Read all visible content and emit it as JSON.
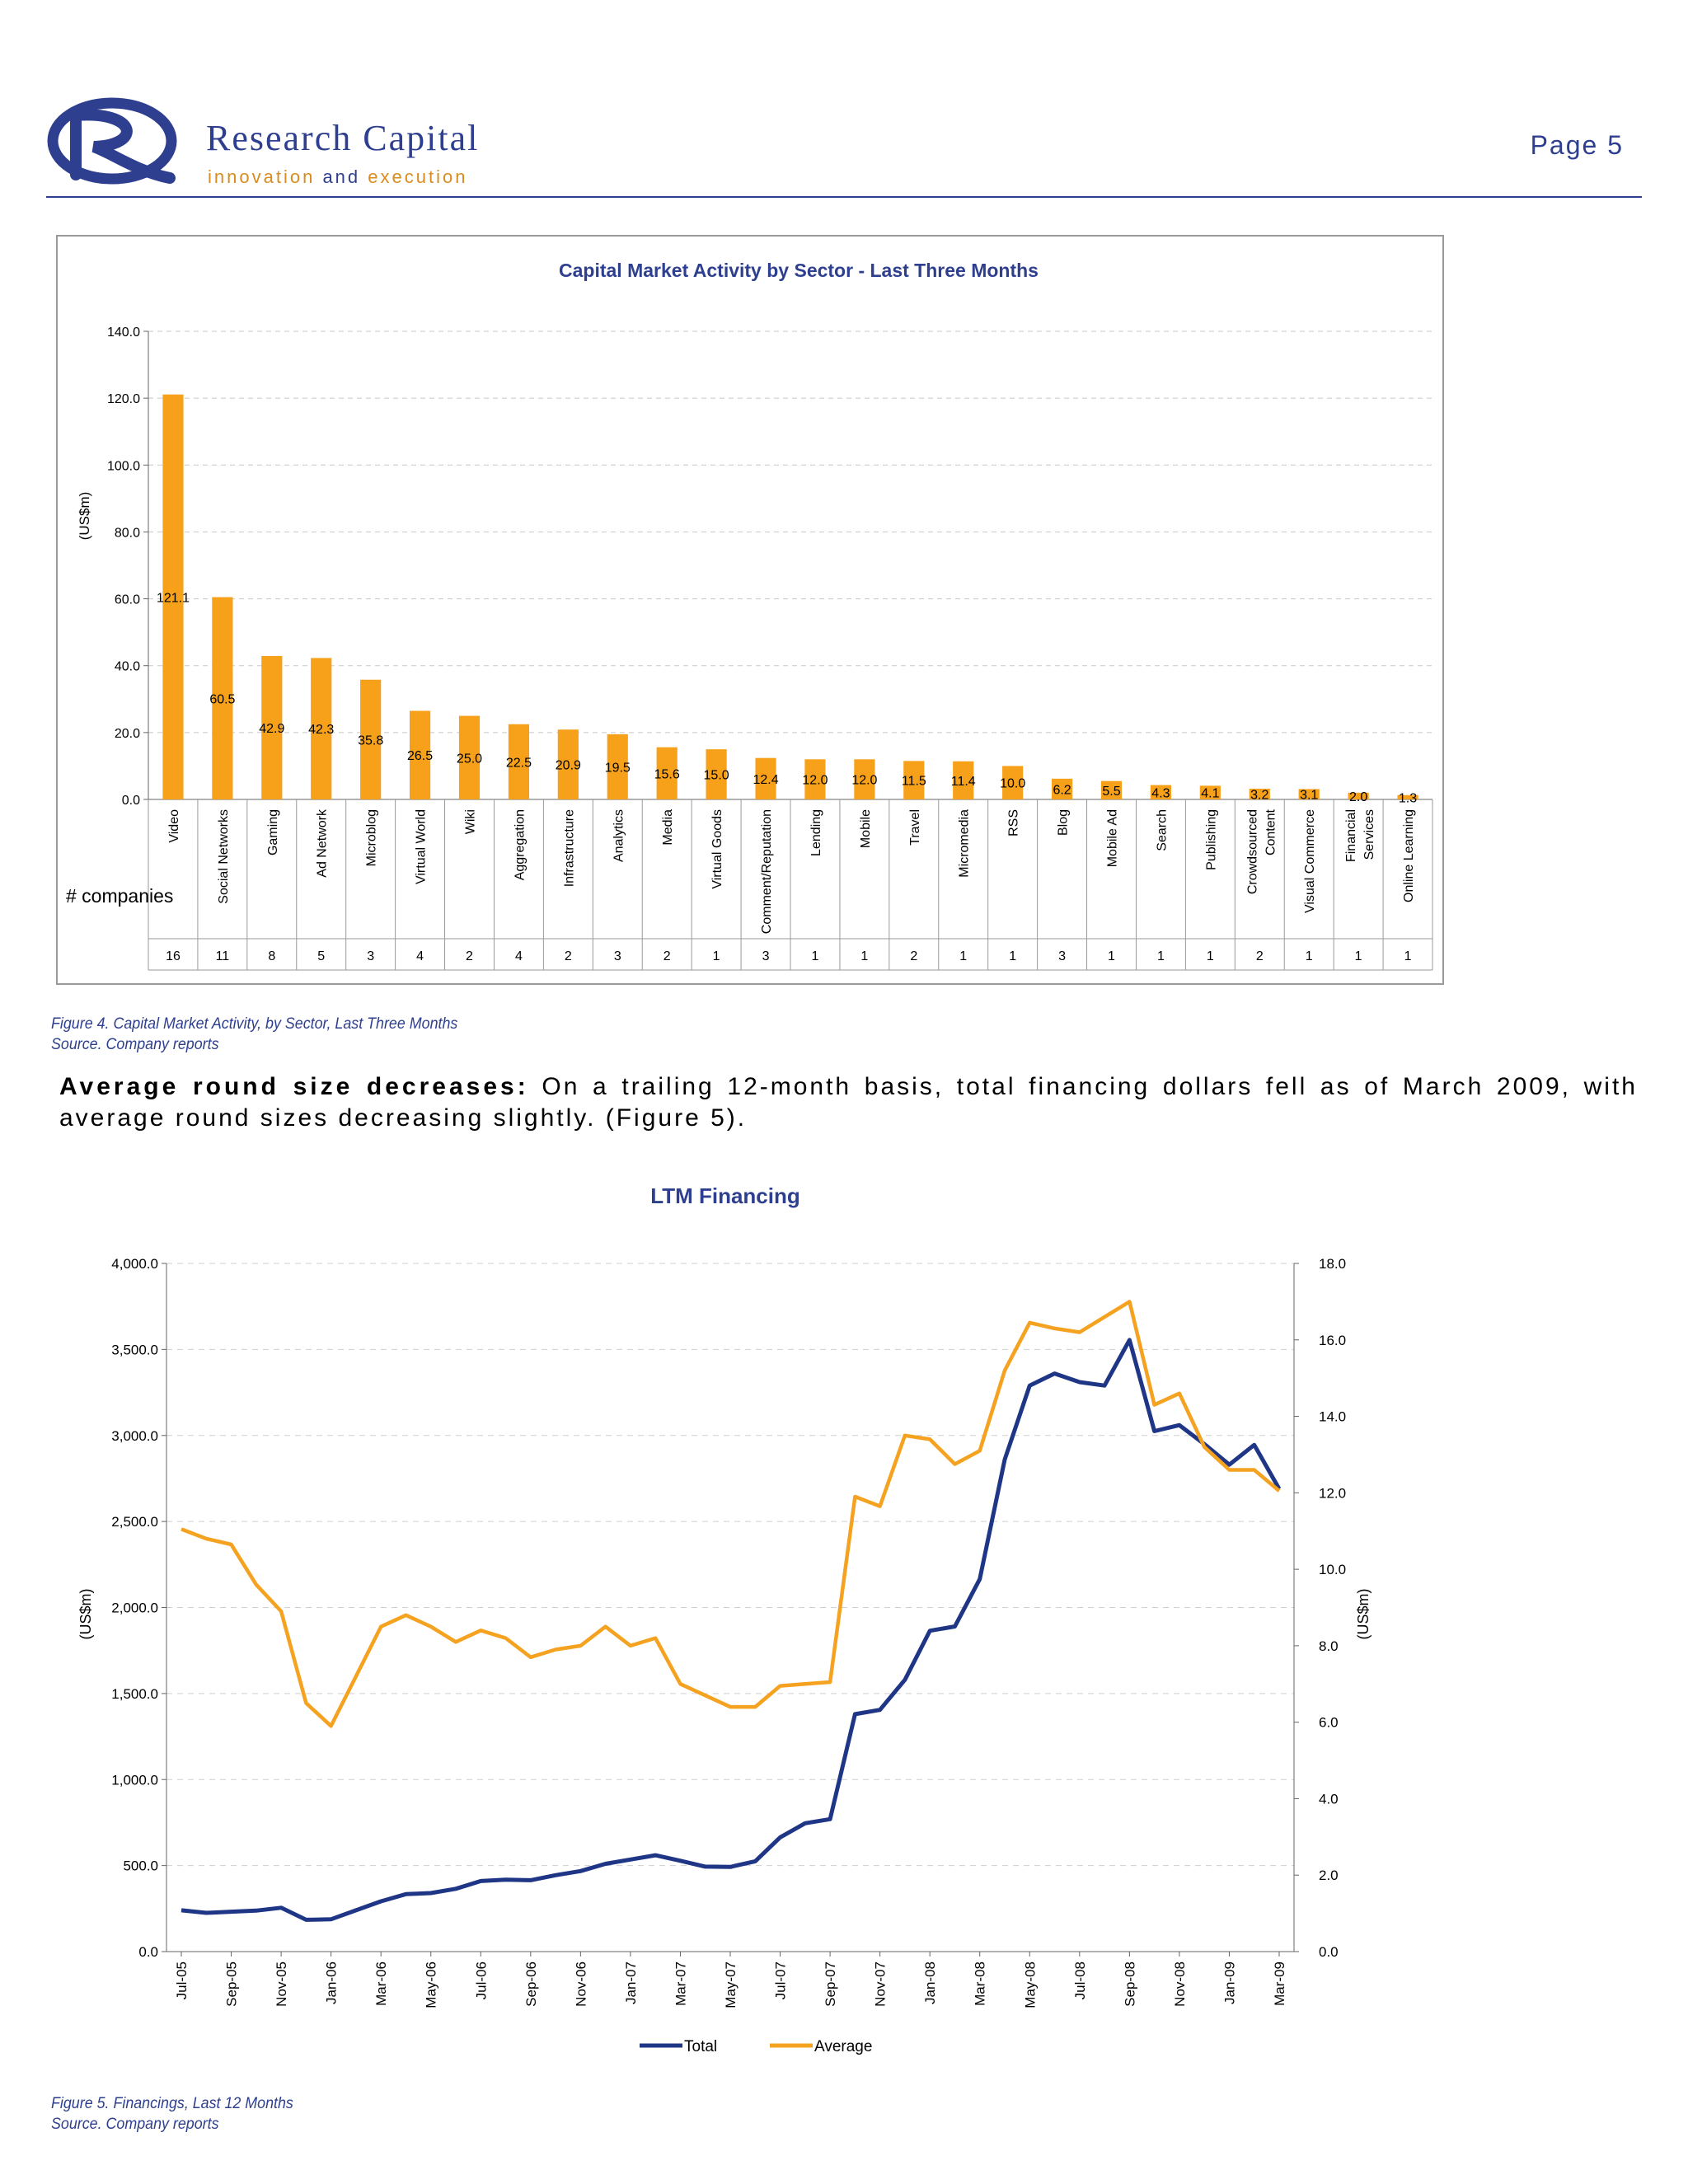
{
  "header": {
    "brand_name": "Research Capital",
    "tagline_part1": "innovation",
    "tagline_and": "and",
    "tagline_part2": "execution",
    "page_label": "Page 5",
    "brand_color": "#2e3f8f",
    "accent_color": "#d98c1f"
  },
  "figure4": {
    "caption": "Figure 4. Capital Market Activity, by Sector, Last Three Months",
    "source": "Source. Company reports"
  },
  "paragraph": {
    "lead": "Average round size decreases:",
    "body": " On a trailing 12-month basis, total financing dollars fell as of March 2009, with average round sizes decreasing slightly. (Figure 5)."
  },
  "figure5": {
    "caption": "Figure 5. Financings, Last 12 Months",
    "source": "Source. Company reports"
  },
  "chart_data": [
    {
      "type": "bar",
      "title": "Capital Market Activity by Sector - Last Three Months",
      "ylabel": "(US$m)",
      "xlabel": "",
      "ylim": [
        0,
        140
      ],
      "yticks": [
        "0.0",
        "20.0",
        "40.0",
        "60.0",
        "80.0",
        "100.0",
        "120.0",
        "140.0"
      ],
      "grid": true,
      "bar_color": "#f7a11a",
      "categories": [
        "Video",
        "Social Networks",
        "Gaming",
        "Ad Network",
        "Microblog",
        "Virtual World",
        "Wiki",
        "Aggregation",
        "Infrastructure",
        "Analytics",
        "Media",
        "Virtual Goods",
        "Comment/Reputation",
        "Lending",
        "Mobile",
        "Travel",
        "Micromedia",
        "RSS",
        "Blog",
        "Mobile Ad",
        "Search",
        "Publishing",
        "Crowdsourced Content",
        "Visual Commerce",
        "Financial Services",
        "Online Learning"
      ],
      "values": [
        121.1,
        60.5,
        42.9,
        42.3,
        35.8,
        26.5,
        25.0,
        22.5,
        20.9,
        19.5,
        15.6,
        15.0,
        12.4,
        12.0,
        12.0,
        11.5,
        11.4,
        10.0,
        6.2,
        5.5,
        4.3,
        4.1,
        3.2,
        3.1,
        2.0,
        1.3
      ],
      "value_labels": [
        "121.1",
        "60.5",
        "42.9",
        "42.3",
        "35.8",
        "26.5",
        "25.0",
        "22.5",
        "20.9",
        "19.5",
        "15.6",
        "15.0",
        "12.4",
        "12.0",
        "12.0",
        "11.5",
        "11.4",
        "10.0",
        "6.2",
        "5.5",
        "4.3",
        "4.1",
        "3.2",
        "3.1",
        "2.0",
        "1.3"
      ],
      "table_row_label": "# companies",
      "companies": [
        16,
        11,
        8,
        5,
        3,
        4,
        2,
        4,
        2,
        3,
        2,
        1,
        3,
        1,
        1,
        2,
        1,
        1,
        3,
        1,
        1,
        1,
        2,
        1,
        1,
        1
      ]
    },
    {
      "type": "line",
      "title": "LTM Financing",
      "ylabel_left": "(US$m)",
      "ylabel_right": "(US$m)",
      "ylim_left": [
        0,
        4000
      ],
      "ylim_right": [
        0,
        18
      ],
      "yticks_left": [
        "0.0",
        "500.0",
        "1,000.0",
        "1,500.0",
        "2,000.0",
        "2,500.0",
        "3,000.0",
        "3,500.0",
        "4,000.0"
      ],
      "yticks_right": [
        "0.0",
        "2.0",
        "4.0",
        "6.0",
        "8.0",
        "10.0",
        "12.0",
        "14.0",
        "16.0",
        "18.0"
      ],
      "grid": true,
      "legend_position": "bottom",
      "x": [
        "Jul-05",
        "Aug-05",
        "Sep-05",
        "Oct-05",
        "Nov-05",
        "Dec-05",
        "Jan-06",
        "Feb-06",
        "Mar-06",
        "Apr-06",
        "May-06",
        "Jun-06",
        "Jul-06",
        "Aug-06",
        "Sep-06",
        "Oct-06",
        "Nov-06",
        "Dec-06",
        "Jan-07",
        "Feb-07",
        "Mar-07",
        "Apr-07",
        "May-07",
        "Jun-07",
        "Jul-07",
        "Aug-07",
        "Sep-07",
        "Oct-07",
        "Nov-07",
        "Dec-07",
        "Jan-08",
        "Feb-08",
        "Mar-08",
        "Apr-08",
        "May-08",
        "Jun-08",
        "Jul-08",
        "Aug-08",
        "Sep-08",
        "Oct-08",
        "Nov-08",
        "Dec-08",
        "Jan-09",
        "Feb-09",
        "Mar-09"
      ],
      "xtick_labels": [
        "Jul-05",
        "Sep-05",
        "Nov-05",
        "Jan-06",
        "Mar-06",
        "May-06",
        "Jul-06",
        "Sep-06",
        "Nov-06",
        "Jan-07",
        "Mar-07",
        "May-07",
        "Jul-07",
        "Sep-07",
        "Nov-07",
        "Jan-08",
        "Mar-08",
        "May-08",
        "Jul-08",
        "Sep-08",
        "Nov-08",
        "Jan-09",
        "Mar-09"
      ],
      "series": [
        {
          "name": "Total",
          "axis": "left",
          "color": "#1f3585",
          "values": [
            240,
            225,
            232,
            238,
            255,
            185,
            188,
            240,
            292,
            334,
            340,
            365,
            410,
            418,
            415,
            444,
            468,
            510,
            535,
            560,
            528,
            494,
            492,
            525,
            664,
            746,
            770,
            1380,
            1405,
            1580,
            1865,
            1890,
            2165,
            2860,
            3290,
            3360,
            3310,
            3290,
            3555,
            3025,
            3060,
            2950,
            2830,
            2945,
            2690
          ]
        },
        {
          "name": "Average",
          "axis": "right",
          "color": "#f4a21f",
          "values": [
            11.05,
            10.8,
            10.65,
            9.6,
            8.9,
            6.5,
            5.9,
            7.2,
            8.5,
            8.8,
            8.5,
            8.1,
            8.4,
            8.2,
            7.7,
            7.9,
            8.0,
            8.5,
            8.0,
            8.2,
            7.0,
            6.7,
            6.4,
            6.4,
            6.95,
            7.0,
            7.05,
            11.9,
            11.65,
            13.5,
            13.4,
            12.75,
            13.1,
            15.2,
            16.45,
            16.3,
            16.2,
            16.6,
            17.0,
            14.3,
            14.6,
            13.2,
            12.6,
            12.6,
            12.05
          ]
        }
      ]
    }
  ]
}
